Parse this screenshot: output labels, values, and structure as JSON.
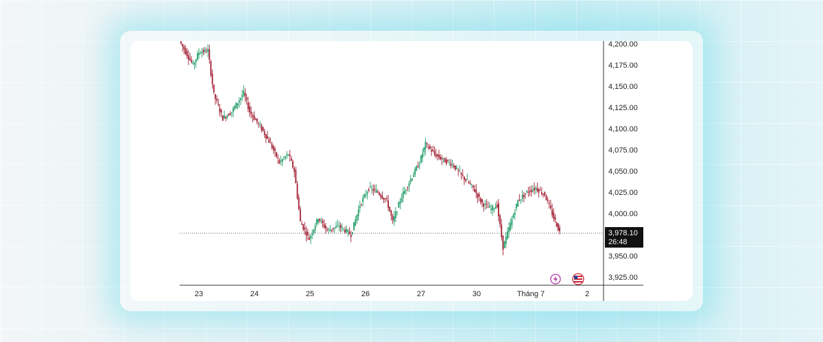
{
  "chart_data": {
    "type": "candlestick",
    "ylim": [
      3915,
      4202
    ],
    "y_ticks": [
      "4,200.00",
      "4,175.00",
      "4,150.00",
      "4,125.00",
      "4,100.00",
      "4,075.00",
      "4,050.00",
      "4,025.00",
      "4,000.00",
      "3,950.00",
      "3,925.00"
    ],
    "x_ticks": [
      "23",
      "24",
      "25",
      "26",
      "27",
      "30",
      "Tháng 7",
      "2"
    ],
    "current_price": 3978.1,
    "current_price_label": "3,978.10",
    "countdown_label": "26:48",
    "up_color": "#1f9c68",
    "down_color": "#a01c30",
    "keypoints": [
      [
        0,
        4200
      ],
      [
        8,
        4175
      ],
      [
        12,
        4190
      ],
      [
        18,
        4192
      ],
      [
        22,
        4140
      ],
      [
        28,
        4112
      ],
      [
        34,
        4120
      ],
      [
        42,
        4142
      ],
      [
        46,
        4120
      ],
      [
        54,
        4100
      ],
      [
        60,
        4082
      ],
      [
        66,
        4060
      ],
      [
        72,
        4070
      ],
      [
        76,
        4050
      ],
      [
        80,
        3990
      ],
      [
        86,
        3970
      ],
      [
        92,
        3995
      ],
      [
        98,
        3980
      ],
      [
        106,
        3985
      ],
      [
        114,
        3975
      ],
      [
        120,
        4010
      ],
      [
        126,
        4030
      ],
      [
        132,
        4025
      ],
      [
        138,
        4015
      ],
      [
        142,
        3990
      ],
      [
        148,
        4020
      ],
      [
        154,
        4040
      ],
      [
        160,
        4060
      ],
      [
        164,
        4082
      ],
      [
        170,
        4070
      ],
      [
        176,
        4063
      ],
      [
        182,
        4058
      ],
      [
        188,
        4045
      ],
      [
        196,
        4030
      ],
      [
        202,
        4012
      ],
      [
        208,
        4005
      ],
      [
        212,
        4010
      ],
      [
        216,
        3960
      ],
      [
        220,
        3982
      ],
      [
        226,
        4015
      ],
      [
        232,
        4025
      ],
      [
        238,
        4030
      ],
      [
        244,
        4022
      ],
      [
        250,
        3995
      ],
      [
        254,
        3978
      ]
    ]
  },
  "icons": [
    "lightning-icon",
    "us-flag-icon"
  ]
}
